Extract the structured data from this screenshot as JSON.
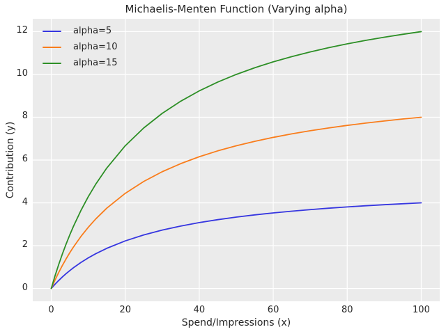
{
  "chart_data": {
    "type": "line",
    "title": "Michaelis-Menten Function (Varying alpha)",
    "xlabel": "Spend/Impressions (x)",
    "ylabel": "Contribution (y)",
    "xlim": [
      -5,
      105
    ],
    "ylim": [
      -0.6,
      12.6
    ],
    "xticks": [
      0,
      20,
      40,
      60,
      80,
      100
    ],
    "yticks": [
      0,
      2,
      4,
      6,
      8,
      10,
      12
    ],
    "grid": true,
    "legend_position": "upper left",
    "colors": {
      "axes_background": "#ebebeb",
      "gridline": "#ffffff",
      "text": "#262626"
    },
    "x": [
      0,
      1,
      2,
      3,
      4,
      5,
      6,
      8,
      10,
      12,
      15,
      20,
      25,
      30,
      35,
      40,
      45,
      50,
      55,
      60,
      65,
      70,
      75,
      80,
      85,
      90,
      95,
      100
    ],
    "series": [
      {
        "name": "alpha=5",
        "color": "#3636e0",
        "values": [
          0,
          0.192,
          0.37,
          0.536,
          0.69,
          0.833,
          0.968,
          1.212,
          1.429,
          1.622,
          1.875,
          2.222,
          2.5,
          2.727,
          2.917,
          3.077,
          3.214,
          3.333,
          3.438,
          3.529,
          3.611,
          3.684,
          3.75,
          3.81,
          3.864,
          3.913,
          3.958,
          4
        ]
      },
      {
        "name": "alpha=10",
        "color": "#f97d1c",
        "values": [
          0,
          0.385,
          0.741,
          1.071,
          1.379,
          1.667,
          1.935,
          2.424,
          2.857,
          3.243,
          3.75,
          4.444,
          5,
          5.455,
          5.833,
          6.154,
          6.429,
          6.667,
          6.875,
          7.059,
          7.222,
          7.368,
          7.5,
          7.619,
          7.727,
          7.826,
          7.917,
          8
        ]
      },
      {
        "name": "alpha=15",
        "color": "#2d8f26",
        "values": [
          0,
          0.577,
          1.111,
          1.607,
          2.069,
          2.5,
          2.903,
          3.636,
          4.286,
          4.865,
          5.625,
          6.667,
          7.5,
          8.182,
          8.75,
          9.231,
          9.643,
          10,
          10.312,
          10.588,
          10.833,
          11.053,
          11.25,
          11.429,
          11.591,
          11.739,
          11.875,
          12
        ]
      }
    ]
  }
}
